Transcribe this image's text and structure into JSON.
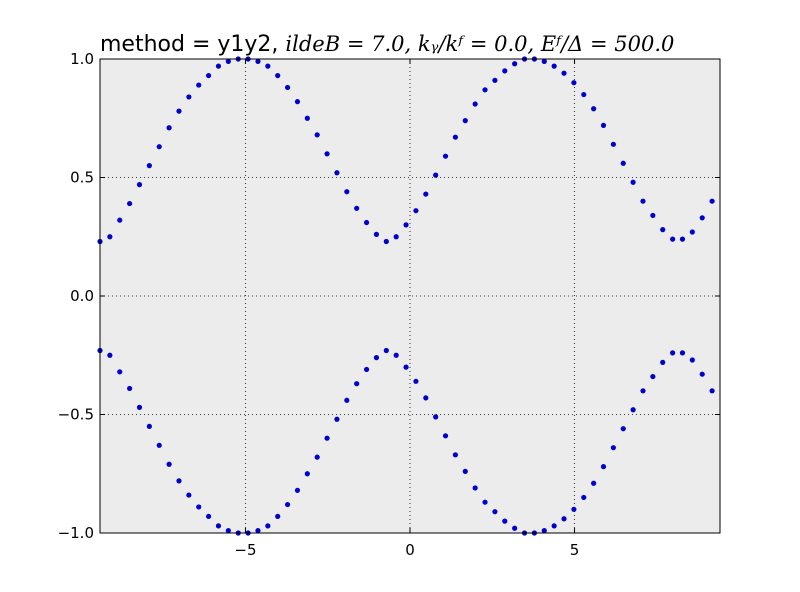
{
  "chart_data": {
    "type": "scatter",
    "title": {
      "prefix": "method = y1y2, ",
      "math": "ildeB = 7.0, kᵧ/kᶠ = 0.0, Eᶠ/Δ = 500.0"
    },
    "xlabel": "",
    "ylabel": "",
    "xlim": [
      -9.42,
      9.42
    ],
    "ylim": [
      -1.0,
      1.0
    ],
    "x_ticks": [
      -5,
      0,
      5
    ],
    "x_tick_labels": [
      "−5",
      "0",
      "5"
    ],
    "y_ticks": [
      -1.0,
      -0.5,
      0.0,
      0.5,
      1.0
    ],
    "y_tick_labels": [
      "−1.0",
      "−0.5",
      "0.0",
      "0.5",
      "1.0"
    ],
    "grid": true,
    "background_color": "#ececec",
    "point_color": "#0000cc",
    "series": [
      {
        "x": [
          -9.42,
          -9.12,
          -8.82,
          -8.52,
          -8.22,
          -7.92,
          -7.62,
          -7.32,
          -7.02,
          -6.72,
          -6.42,
          -6.12,
          -5.82,
          -5.52,
          -5.22,
          -4.92,
          -4.62,
          -4.32,
          -4.02,
          -3.72,
          -3.42,
          -3.12,
          -2.82,
          -2.52,
          -2.22,
          -1.92,
          -1.62,
          -1.32,
          -1.02,
          -0.72,
          -0.42,
          -0.12,
          0.18,
          0.48,
          0.78,
          1.08,
          1.38,
          1.68,
          1.98,
          2.28,
          2.58,
          2.88,
          3.18,
          3.48,
          3.78,
          4.08,
          4.38,
          4.68,
          4.98,
          5.28,
          5.58,
          5.88,
          6.18,
          6.48,
          6.78,
          7.08,
          7.38,
          7.68,
          7.98,
          8.28,
          8.58,
          8.88,
          9.18
        ],
        "y": [
          0.23,
          0.25,
          0.32,
          0.39,
          0.47,
          0.55,
          0.63,
          0.71,
          0.78,
          0.84,
          0.89,
          0.93,
          0.97,
          0.99,
          1.0,
          1.0,
          0.99,
          0.97,
          0.93,
          0.88,
          0.82,
          0.75,
          0.68,
          0.6,
          0.52,
          0.44,
          0.37,
          0.31,
          0.26,
          0.23,
          0.25,
          0.3,
          0.36,
          0.43,
          0.51,
          0.59,
          0.67,
          0.74,
          0.81,
          0.87,
          0.91,
          0.95,
          0.98,
          1.0,
          1.0,
          0.99,
          0.97,
          0.94,
          0.9,
          0.85,
          0.79,
          0.72,
          0.64,
          0.56,
          0.48,
          0.4,
          0.34,
          0.28,
          0.24,
          0.24,
          0.27,
          0.33,
          0.4
        ]
      },
      {
        "x": [
          -9.42,
          -9.12,
          -8.82,
          -8.52,
          -8.22,
          -7.92,
          -7.62,
          -7.32,
          -7.02,
          -6.72,
          -6.42,
          -6.12,
          -5.82,
          -5.52,
          -5.22,
          -4.92,
          -4.62,
          -4.32,
          -4.02,
          -3.72,
          -3.42,
          -3.12,
          -2.82,
          -2.52,
          -2.22,
          -1.92,
          -1.62,
          -1.32,
          -1.02,
          -0.72,
          -0.42,
          -0.12,
          0.18,
          0.48,
          0.78,
          1.08,
          1.38,
          1.68,
          1.98,
          2.28,
          2.58,
          2.88,
          3.18,
          3.48,
          3.78,
          4.08,
          4.38,
          4.68,
          4.98,
          5.28,
          5.58,
          5.88,
          6.18,
          6.48,
          6.78,
          7.08,
          7.38,
          7.68,
          7.98,
          8.28,
          8.58,
          8.88,
          9.18
        ],
        "y": [
          -0.23,
          -0.25,
          -0.32,
          -0.39,
          -0.47,
          -0.55,
          -0.63,
          -0.71,
          -0.78,
          -0.84,
          -0.89,
          -0.93,
          -0.97,
          -0.99,
          -1.0,
          -1.0,
          -0.99,
          -0.97,
          -0.93,
          -0.88,
          -0.82,
          -0.75,
          -0.68,
          -0.6,
          -0.52,
          -0.44,
          -0.37,
          -0.31,
          -0.26,
          -0.23,
          -0.25,
          -0.3,
          -0.36,
          -0.43,
          -0.51,
          -0.59,
          -0.67,
          -0.74,
          -0.81,
          -0.87,
          -0.91,
          -0.95,
          -0.98,
          -1.0,
          -1.0,
          -0.99,
          -0.97,
          -0.94,
          -0.9,
          -0.85,
          -0.79,
          -0.72,
          -0.64,
          -0.56,
          -0.48,
          -0.4,
          -0.34,
          -0.28,
          -0.24,
          -0.24,
          -0.27,
          -0.33,
          -0.4
        ]
      }
    ]
  }
}
